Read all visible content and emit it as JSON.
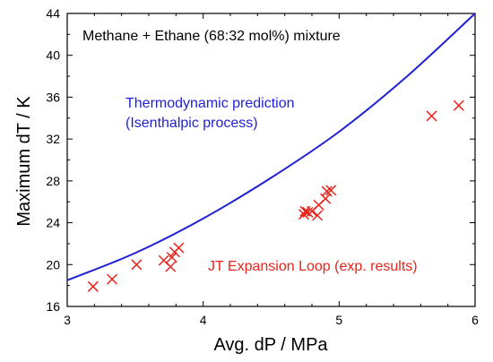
{
  "chart_data": {
    "type": "scatter",
    "title": "Methane + Ethane (68:32 mol%) mixture",
    "xlabel": "Avg. dP / MPa",
    "ylabel": "Maximum dT / K",
    "xlim": [
      3,
      6
    ],
    "ylim": [
      16,
      44
    ],
    "x_ticks": [
      3,
      4,
      5,
      6
    ],
    "x_tick_labels": [
      "3",
      "4",
      "5",
      "6"
    ],
    "y_ticks": [
      16,
      20,
      24,
      28,
      32,
      36,
      40,
      44
    ],
    "y_tick_labels": [
      "16",
      "20",
      "24",
      "28",
      "32",
      "36",
      "40",
      "44"
    ],
    "grid": false,
    "series": [
      {
        "type": "line",
        "color": "#1f1fd6",
        "label_lines": [
          "Thermodynamic prediction",
          "(Isenthalpic process)"
        ],
        "x": [
          3.0,
          3.5,
          4.0,
          4.5,
          5.0,
          5.5,
          6.0
        ],
        "y": [
          18.5,
          21.1,
          24.4,
          28.3,
          32.7,
          38.0,
          44.0
        ]
      },
      {
        "type": "scatter",
        "marker": "x",
        "color": "#e8231a",
        "label": "JT Expansion Loop (exp. results)",
        "x": [
          3.19,
          3.33,
          3.51,
          3.71,
          3.76,
          3.77,
          3.79,
          3.82,
          4.74,
          4.75,
          4.77,
          4.8,
          4.84,
          4.85,
          4.9,
          4.91,
          4.94,
          5.68,
          5.88
        ],
        "y": [
          17.9,
          18.6,
          20.0,
          20.4,
          19.8,
          20.7,
          21.2,
          21.6,
          24.8,
          25.1,
          25.0,
          25.1,
          24.7,
          25.7,
          26.3,
          27.0,
          27.1,
          34.2,
          35.2
        ]
      }
    ]
  }
}
